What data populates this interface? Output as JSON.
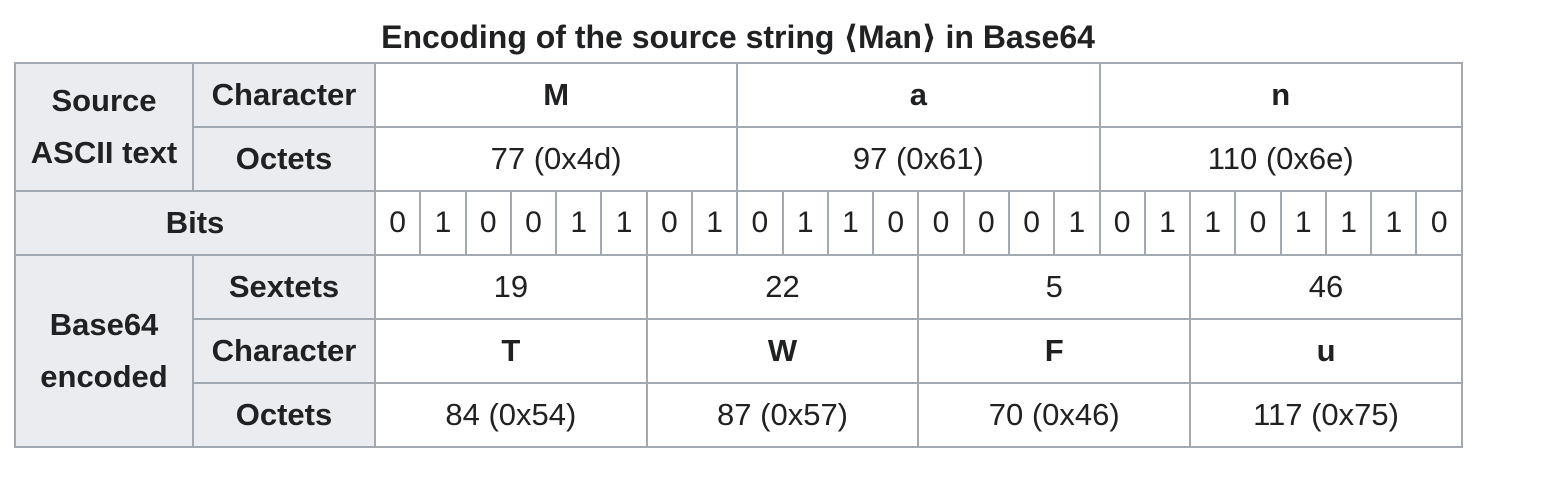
{
  "caption": "Encoding of the source string ⟨Man⟩ in Base64",
  "headers": {
    "source_group_line1": "Source",
    "source_group_line2": "ASCII text",
    "character": "Character",
    "octets": "Octets",
    "bits": "Bits",
    "base64_group_line1": "Base64",
    "base64_group_line2": "encoded",
    "sextets": "Sextets"
  },
  "source": {
    "characters": [
      "M",
      "a",
      "n"
    ],
    "octets": [
      "77 (0x4d)",
      "97 (0x61)",
      "110 (0x6e)"
    ]
  },
  "bits": [
    "0",
    "1",
    "0",
    "0",
    "1",
    "1",
    "0",
    "1",
    "0",
    "1",
    "1",
    "0",
    "0",
    "0",
    "0",
    "1",
    "0",
    "1",
    "1",
    "0",
    "1",
    "1",
    "1",
    "0"
  ],
  "encoded": {
    "sextets": [
      "19",
      "22",
      "5",
      "46"
    ],
    "characters": [
      "T",
      "W",
      "F",
      "u"
    ],
    "octets": [
      "84 (0x54)",
      "87 (0x57)",
      "70 (0x46)",
      "117 (0x75)"
    ]
  }
}
